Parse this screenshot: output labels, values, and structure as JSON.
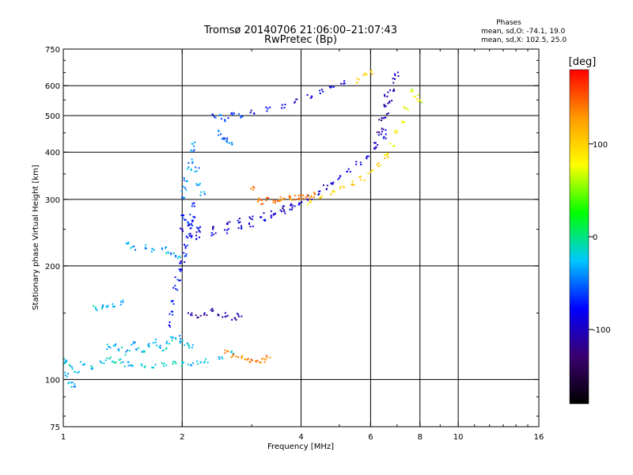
{
  "chart_data": {
    "type": "scatter",
    "title": "Tromsø 20140706 21:06:00–21:07:43",
    "subtitle": "RwPretec (Bp)",
    "xlabel": "Frequency [MHz]",
    "ylabel": "Stationary phase Virtual Height [km]",
    "x_scale": "log",
    "y_scale": "log",
    "xlim": [
      1,
      16
    ],
    "ylim": [
      75,
      750
    ],
    "x_ticks": [
      1,
      2,
      4,
      6,
      8,
      10,
      16
    ],
    "y_ticks": [
      75,
      100,
      200,
      300,
      400,
      500,
      600,
      750
    ],
    "x_gridlines": [
      2,
      4,
      6,
      8,
      10
    ],
    "y_gridlines": [
      100,
      200,
      300,
      400,
      500,
      600
    ],
    "grid": true,
    "phase_info": {
      "heading": "Phases",
      "line_o": "mean, sd,O: -74.1, 19.0",
      "line_x": "mean, sd,X: 102.5, 25.0"
    },
    "colorbar": {
      "label": "[deg]",
      "ticks": [
        100,
        0,
        -100
      ],
      "range": [
        -180,
        180
      ],
      "colors": [
        "#000000",
        "#3a0070",
        "#0000ff",
        "#00c8ff",
        "#00ff00",
        "#ffff00",
        "#ff9900",
        "#ff0000"
      ]
    },
    "series": [
      {
        "traces": [
          {
            "f": [
              1.02,
              1.05,
              1.08,
              1.12,
              1.18,
              1.25,
              1.3,
              1.35,
              1.4,
              1.45,
              1.5,
              1.6,
              1.7,
              1.8,
              1.9,
              2.0,
              2.1,
              2.2,
              2.3,
              2.5,
              2.7
            ],
            "h": [
              112,
              108,
              105,
              110,
              108,
              111,
              113,
              112,
              112,
              110,
              110,
              109,
              109,
              109,
              110,
              110,
              110,
              111,
              112,
              115,
              118
            ],
            "p": -20
          },
          {
            "f": [
              1.0,
              1.02,
              1.04,
              1.06
            ],
            "h": [
              110,
              103,
              98,
              96
            ],
            "p": -30
          },
          {
            "f": [
              1.3,
              1.35,
              1.4,
              1.45,
              1.5,
              1.55,
              1.6,
              1.65,
              1.7,
              1.75,
              1.8,
              1.85,
              1.9,
              1.95,
              2.0,
              2.05,
              2.1
            ],
            "h": [
              122,
              124,
              120,
              118,
              125,
              121,
              119,
              123,
              127,
              122,
              120,
              125,
              128,
              130,
              126,
              124,
              122
            ],
            "p": -25
          },
          {
            "f": [
              1.2,
              1.25,
              1.3,
              1.35,
              1.4
            ],
            "h": [
              155,
              155,
              157,
              158,
              160
            ],
            "p": -25
          },
          {
            "f": [
              1.45,
              1.5,
              1.6,
              1.7,
              1.8,
              1.85,
              1.9,
              1.95
            ],
            "h": [
              228,
              222,
              225,
              220,
              224,
              218,
              215,
              210
            ],
            "p": -35
          },
          {
            "f": [
              1.85,
              1.88,
              1.9,
              1.92,
              1.95,
              1.98,
              2.0,
              2.02,
              2.05,
              2.08,
              2.1,
              2.12,
              2.15
            ],
            "h": [
              140,
              150,
              160,
              175,
              185,
              195,
              205,
              215,
              225,
              240,
              255,
              270,
              290
            ],
            "p": -75
          },
          {
            "f": [
              2.0,
              2.02,
              2.05,
              2.08,
              2.1,
              2.12,
              2.15,
              2.18,
              2.2,
              2.25
            ],
            "h": [
              300,
              320,
              340,
              360,
              380,
              400,
              420,
              360,
              330,
              310
            ],
            "p": -40
          },
          {
            "f": [
              2.0,
              2.05,
              2.1,
              2.15,
              2.2
            ],
            "h": [
              270,
              262,
              255,
              265,
              250
            ],
            "p": -65
          },
          {
            "f": [
              2.1,
              2.2,
              2.4,
              2.6,
              2.8,
              3.0,
              3.2,
              3.4,
              3.6,
              3.8,
              4.0,
              4.2,
              4.4,
              4.6,
              4.8,
              5.0,
              5.3,
              5.6,
              5.9,
              6.2,
              6.5
            ],
            "h": [
              240,
              238,
              243,
              247,
              252,
              257,
              263,
              270,
              278,
              286,
              294,
              303,
              313,
              323,
              333,
              344,
              356,
              372,
              390,
              410,
              440
            ],
            "p": -90
          },
          {
            "f": [
              2.0,
              2.2,
              2.4,
              2.6,
              2.8,
              3.0,
              3.2,
              3.4,
              3.6,
              3.8
            ],
            "h": [
              250,
              248,
              253,
              258,
              263,
              268,
              272,
              278,
              285,
              292
            ],
            "p": -100
          },
          {
            "f": [
              6.5,
              6.6,
              6.7,
              6.8,
              6.9,
              7.0
            ],
            "h": [
              460,
              500,
              540,
              580,
              620,
              645
            ],
            "p": -105
          },
          {
            "f": [
              6.2,
              6.3,
              6.4,
              6.5,
              6.6
            ],
            "h": [
              420,
              450,
              490,
              530,
              570
            ],
            "p": -110
          },
          {
            "f": [
              3.0,
              3.3,
              3.6,
              3.9,
              4.2,
              4.5,
              4.8,
              5.1
            ],
            "h": [
              510,
              520,
              530,
              545,
              560,
              580,
              600,
              615
            ],
            "p": -90
          },
          {
            "f": [
              2.4,
              2.5,
              2.6,
              2.7,
              2.8
            ],
            "h": [
              500,
              495,
              490,
              505,
              500
            ],
            "p": -60
          },
          {
            "f": [
              2.5,
              2.55,
              2.6,
              2.65
            ],
            "h": [
              450,
              440,
              430,
              420
            ],
            "p": -50
          },
          {
            "f": [
              2.1,
              2.2,
              2.3,
              2.4
            ],
            "h": [
              150,
              148,
              150,
              152
            ],
            "p": -110
          },
          {
            "f": [
              2.5,
              2.6,
              2.7,
              2.8
            ],
            "h": [
              147,
              148,
              146,
              149
            ],
            "p": -105
          },
          {
            "f": [
              3.0,
              3.1,
              3.2,
              3.3,
              3.4,
              3.5,
              3.6,
              3.7,
              3.8,
              3.9,
              4.0,
              4.1,
              4.2,
              4.3
            ],
            "h": [
              320,
              300,
              295,
              300,
              296,
              298,
              300,
              302,
              301,
              304,
              303,
              305,
              306,
              308
            ],
            "p": 140
          },
          {
            "f": [
              4.2,
              4.5,
              4.8,
              5.1,
              5.4,
              5.7,
              6.0,
              6.3,
              6.6
            ],
            "h": [
              295,
              303,
              312,
              320,
              330,
              340,
              355,
              370,
              390
            ],
            "p": 100
          },
          {
            "f": [
              6.6,
              6.8,
              7.0,
              7.2,
              7.4
            ],
            "h": [
              395,
              420,
              450,
              480,
              520
            ],
            "p": 80
          },
          {
            "f": [
              2.6,
              2.7,
              2.8,
              2.9,
              3.0,
              3.1,
              3.2,
              3.3
            ],
            "h": [
              118,
              116,
              114,
              113,
              112,
              111,
              112,
              114
            ],
            "p": 140
          },
          {
            "f": [
              7.6,
              7.8,
              8.0
            ],
            "h": [
              580,
              560,
              545
            ],
            "p": 70
          },
          {
            "f": [
              5.6,
              5.8,
              6.0
            ],
            "h": [
              620,
              640,
              650
            ],
            "p": 100
          }
        ]
      }
    ]
  }
}
